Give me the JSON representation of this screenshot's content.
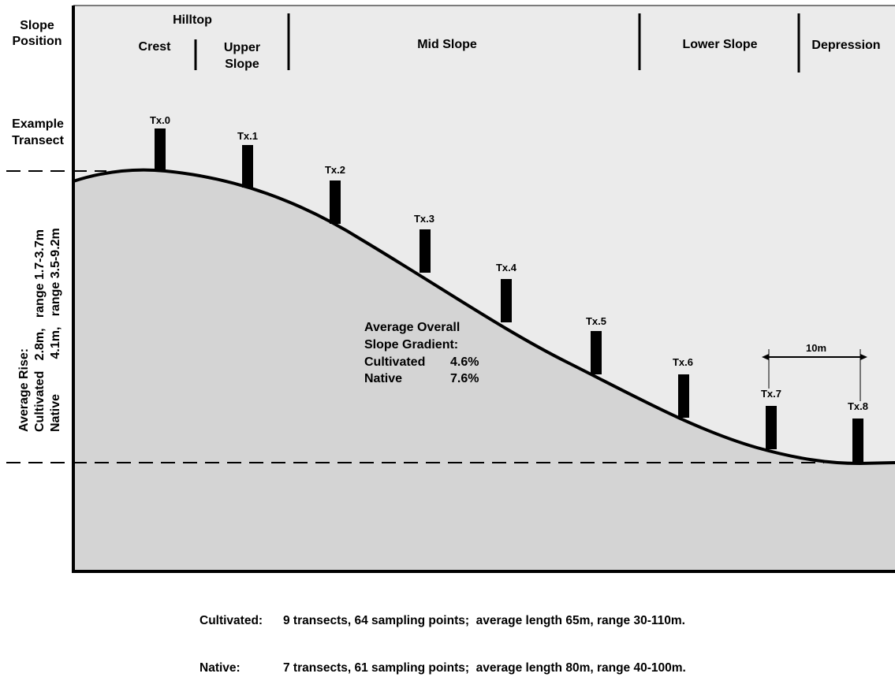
{
  "slope_position": {
    "heading_line1": "Slope",
    "heading_line2": "Position",
    "hilltop": "Hilltop",
    "crest": "Crest",
    "upper_slope_line1": "Upper",
    "upper_slope_line2": "Slope",
    "mid_slope": "Mid Slope",
    "lower_slope": "Lower Slope",
    "depression": "Depression"
  },
  "example_transect": {
    "line1": "Example",
    "line2": "Transect"
  },
  "transects": [
    "Tx.0",
    "Tx.1",
    "Tx.2",
    "Tx.3",
    "Tx.4",
    "Tx.5",
    "Tx.6",
    "Tx.7",
    "Tx.8"
  ],
  "spacing_label": "10m",
  "average_rise": {
    "title": "Average Rise:",
    "cultivated": "Cultivated   2.8m,   range 1.7-3.7m",
    "native": "Native          4.1m,   range 3.5-9.2m"
  },
  "gradient": {
    "title_line1": "Average Overall",
    "title_line2": "Slope Gradient:",
    "rows": [
      {
        "label": "Cultivated",
        "value": "4.6%"
      },
      {
        "label": "Native",
        "value": "7.6%"
      }
    ]
  },
  "footer": {
    "cultivated_label": "Cultivated:",
    "cultivated_text": "9 transects, 64 sampling points;  average length 65m, range 30-110m.",
    "native_label": "Native:",
    "native_text": "7 transects, 61 sampling points;  average length 80m, range 40-100m."
  },
  "colors": {
    "background": "#ffffff",
    "top_panel": "#ebebeb",
    "ground_fill": "#d4d4d4",
    "ink": "#000000"
  }
}
